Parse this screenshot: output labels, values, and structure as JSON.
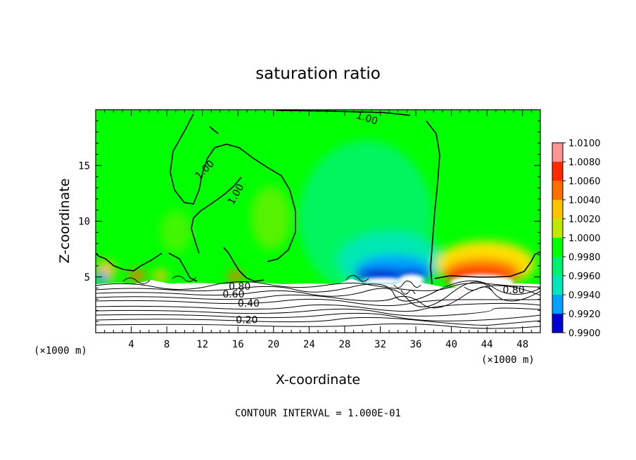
{
  "chart_data": {
    "type": "heatmap",
    "title": "saturation ratio",
    "xlabel": "X-coordinate",
    "ylabel": "Z-coordinate",
    "x_unit": "(×1000 m)",
    "x_ticks": [
      4,
      8,
      12,
      16,
      20,
      24,
      28,
      32,
      36,
      40,
      44,
      48
    ],
    "y_ticks": [
      5,
      10,
      15
    ],
    "xlim": [
      0,
      50
    ],
    "ylim": [
      0,
      20
    ],
    "note": "CONTOUR INTERVAL = 1.000E-01",
    "colorbar": {
      "labels": [
        "1.0100",
        "1.0080",
        "1.0060",
        "1.0040",
        "1.0020",
        "1.0000",
        "0.9980",
        "0.9960",
        "0.9940",
        "0.9920",
        "0.9900"
      ],
      "colors": [
        "#ff9494",
        "#ff2a00",
        "#ff6f00",
        "#ffc400",
        "#c2e800",
        "#00ff00",
        "#00f070",
        "#00e6b8",
        "#00a0ff",
        "#0000d0",
        "#7a00b8"
      ]
    },
    "contour_labels": [
      {
        "text": "1.00",
        "x": 30.5,
        "z": 19.2,
        "angle": 18
      },
      {
        "text": "1.00",
        "x": 12.3,
        "z": 14.6,
        "angle": -45
      },
      {
        "text": "1.00",
        "x": 15.8,
        "z": 12.4,
        "angle": -60
      },
      {
        "text": "0.80",
        "x": 16.2,
        "z": 4.1,
        "angle": 0
      },
      {
        "text": "0.60",
        "x": 15.5,
        "z": 3.4,
        "angle": 0
      },
      {
        "text": "0.40",
        "x": 17.2,
        "z": 2.6,
        "angle": 0
      },
      {
        "text": "0.20",
        "x": 17.0,
        "z": 1.1,
        "angle": 0
      },
      {
        "text": "0.80",
        "x": 47.0,
        "z": 3.8,
        "angle": 0
      }
    ]
  }
}
